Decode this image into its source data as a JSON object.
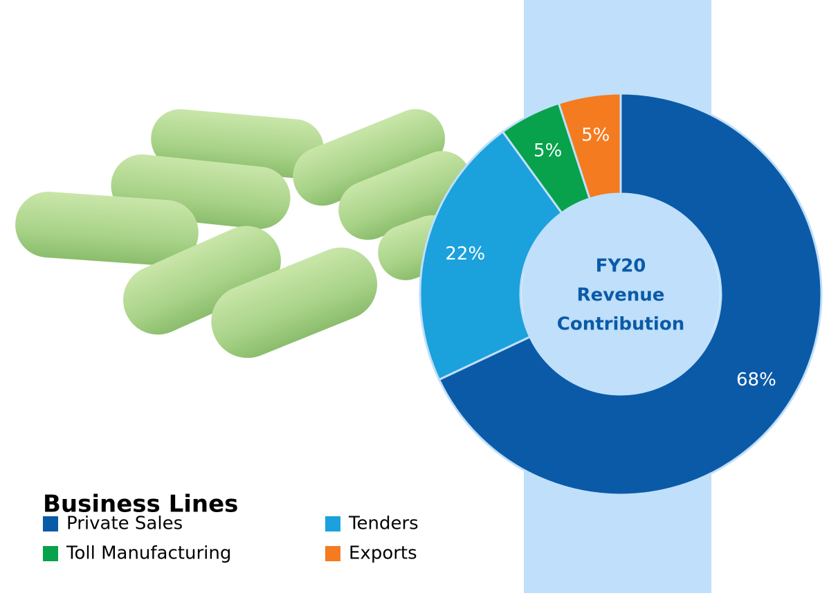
{
  "chart_data": {
    "type": "donut",
    "center_label": [
      "FY20",
      "Revenue",
      "Contribution"
    ],
    "legend_title": "Business Lines",
    "categories": [
      "Private Sales",
      "Tenders",
      "Toll Manufacturing",
      "Exports"
    ],
    "values": [
      68,
      22,
      5,
      5
    ],
    "value_labels": [
      "68%",
      "22%",
      "5%",
      "5%"
    ],
    "colors": [
      "#0b5aa8",
      "#1ba1dc",
      "#07a24b",
      "#f47b20"
    ]
  }
}
